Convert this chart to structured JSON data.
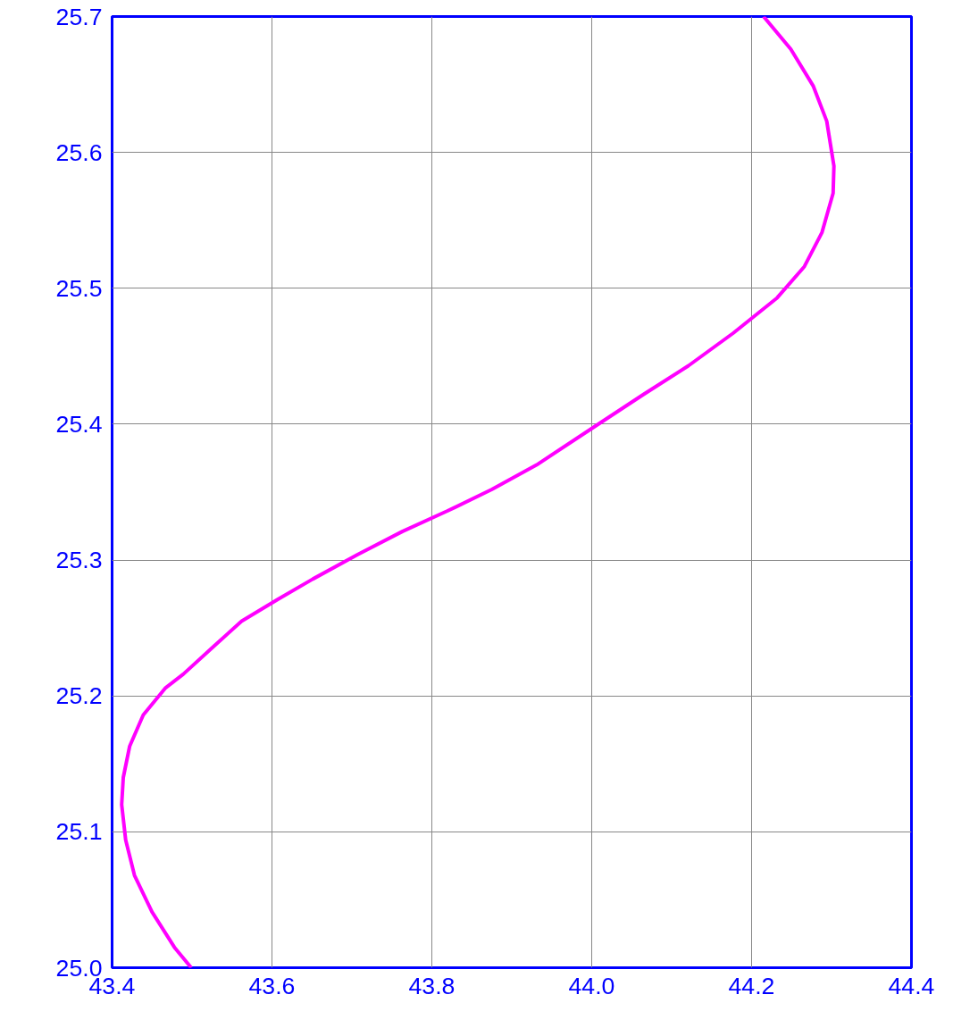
{
  "chart_data": {
    "type": "line",
    "xlim": [
      43.4,
      44.4
    ],
    "ylim": [
      25.0,
      25.7
    ],
    "xticks": [
      43.4,
      43.6,
      43.8,
      {
        "value": 44.0,
        "label": "44.0"
      },
      44.2,
      44.4
    ],
    "yticks": [
      {
        "value": 25.0,
        "label": "25.0"
      },
      25.1,
      25.2,
      25.3,
      25.4,
      25.5,
      25.6,
      25.7
    ],
    "grid": true,
    "marker": "none",
    "line_style": "solid",
    "series": [
      {
        "color": "#ff00ff",
        "x": [
          43.499,
          43.478,
          43.45,
          43.428,
          43.417,
          43.412,
          43.414,
          43.422,
          43.439,
          43.467,
          43.489,
          43.528,
          43.562,
          43.607,
          43.651,
          43.707,
          43.763,
          43.819,
          43.875,
          43.931,
          44.003,
          44.065,
          44.121,
          44.177,
          44.232,
          44.266,
          44.288,
          44.302,
          44.303,
          44.294,
          44.277,
          44.249,
          44.215
        ],
        "values": [
          25.0,
          25.015,
          25.041,
          25.068,
          25.094,
          25.12,
          25.14,
          25.163,
          25.186,
          25.206,
          25.216,
          25.237,
          25.255,
          25.271,
          25.286,
          25.304,
          25.321,
          25.336,
          25.352,
          25.37,
          25.398,
          25.422,
          25.443,
          25.467,
          25.493,
          25.516,
          25.541,
          25.57,
          25.59,
          25.623,
          25.649,
          25.676,
          25.7
        ]
      }
    ]
  }
}
